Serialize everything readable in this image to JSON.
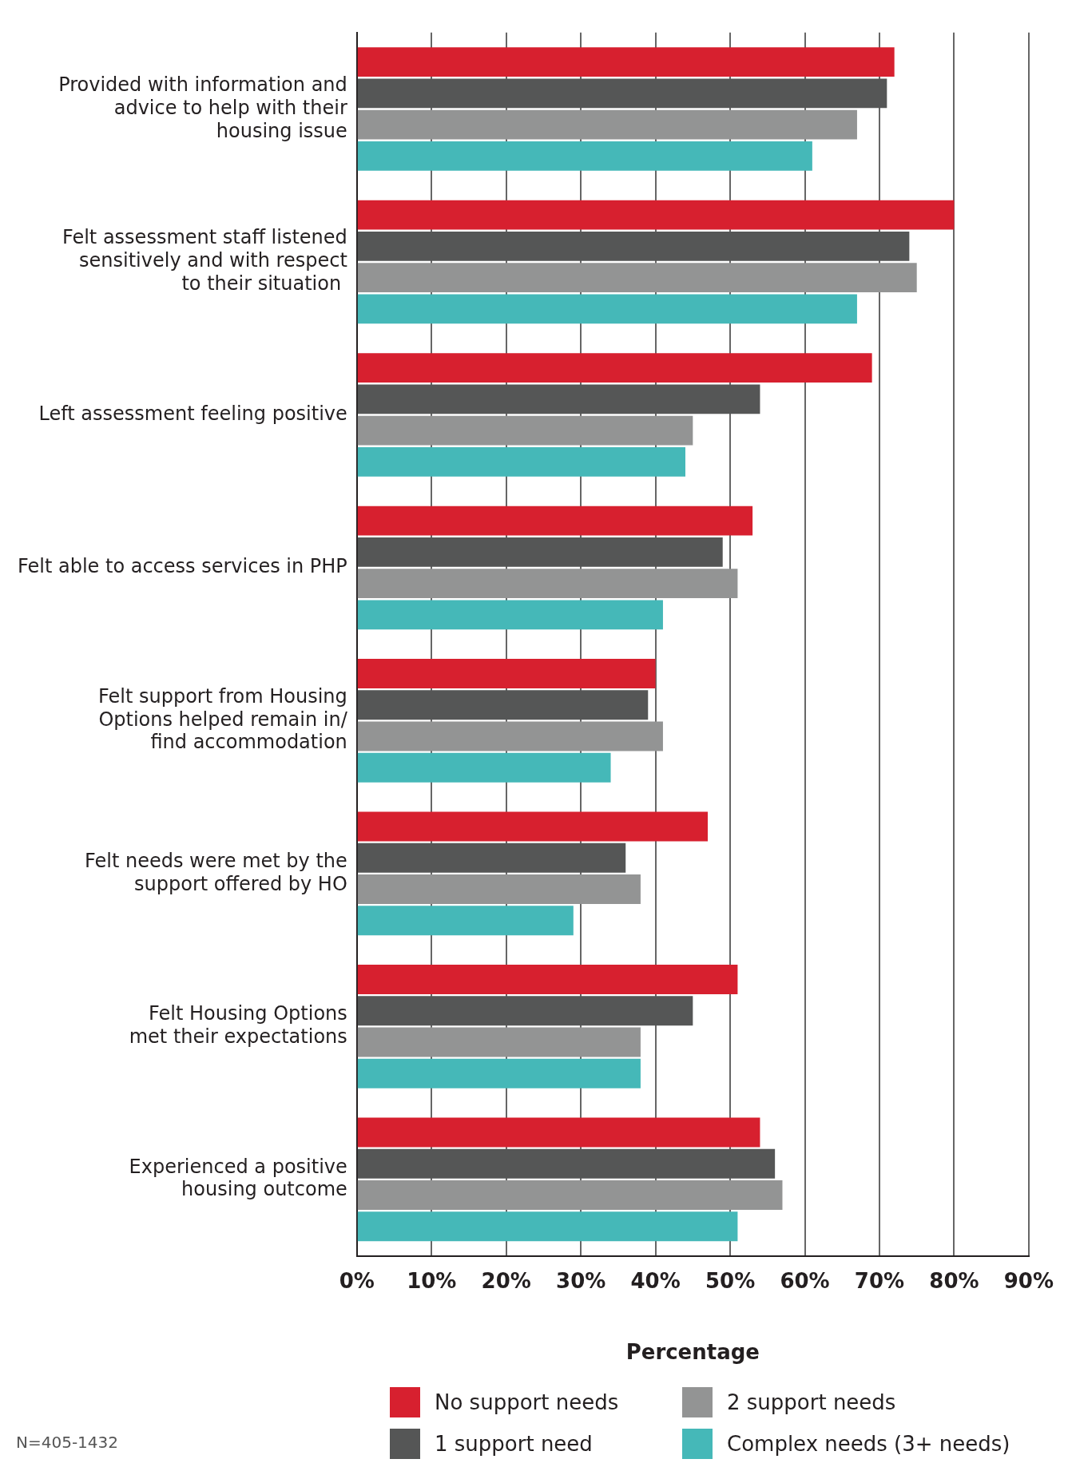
{
  "chart_data": {
    "type": "bar",
    "orientation": "horizontal",
    "xlabel": "Percentage",
    "categories": [
      "Provided with information and\nadvice to help with their\nhousing issue",
      "Felt assessment staff listened\nsensitively and with respect\nto their situation ",
      "Left assessment feeling positive",
      "Felt able to access services in PHP",
      "Felt support from Housing\nOptions helped remain in/\nfind accommodation",
      "Felt needs were met by the\nsupport offered by HO",
      "Felt Housing Options\nmet their expectations",
      "Experienced a positive\nhousing outcome"
    ],
    "series": [
      {
        "name": "No support needs",
        "color": "#d7202f",
        "values": [
          72,
          80,
          69,
          53,
          40,
          47,
          51,
          54
        ]
      },
      {
        "name": "1 support need",
        "color": "#555656",
        "values": [
          71,
          74,
          54,
          49,
          39,
          36,
          45,
          56
        ]
      },
      {
        "name": "2 support needs",
        "color": "#939494",
        "values": [
          67,
          75,
          45,
          51,
          41,
          38,
          38,
          57
        ]
      },
      {
        "name": "Complex needs (3+ needs)",
        "color": "#45b8b8",
        "values": [
          61,
          67,
          44,
          41,
          34,
          29,
          38,
          51
        ]
      }
    ],
    "xlim": [
      0,
      90
    ],
    "xticks": [
      {
        "value": 0,
        "label": "0%"
      },
      {
        "value": 10,
        "label": "10%"
      },
      {
        "value": 20,
        "label": "20%"
      },
      {
        "value": 30,
        "label": "30%"
      },
      {
        "value": 40,
        "label": "40%"
      },
      {
        "value": 50,
        "label": "50%"
      },
      {
        "value": 60,
        "label": "60%"
      },
      {
        "value": 70,
        "label": "70%"
      },
      {
        "value": 80,
        "label": "80%"
      },
      {
        "value": 90,
        "label": "90%"
      }
    ],
    "grid": "x",
    "legend": "bottom",
    "annotations": [
      "N=405-1432"
    ]
  }
}
